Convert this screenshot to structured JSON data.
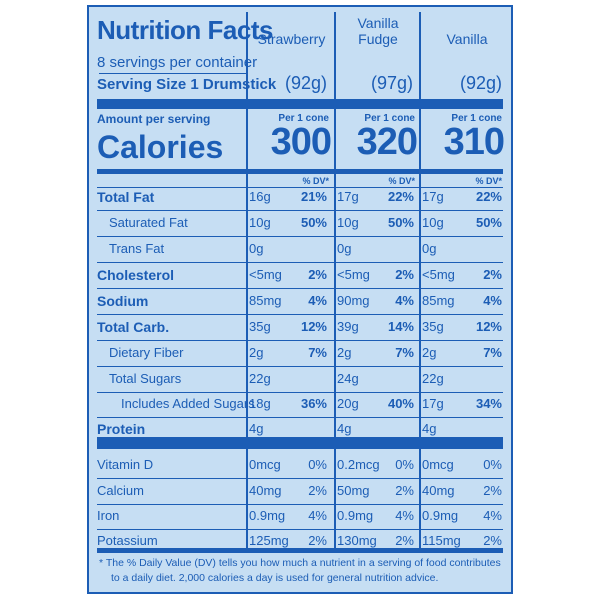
{
  "header": {
    "title": "Nutrition Facts",
    "servings": "8 servings per container",
    "serving_size_label": "Serving Size 1 Drumstick",
    "amount_per_serving": "Amount per serving",
    "calories_label": "Calories"
  },
  "columns": [
    {
      "name": "Strawberry",
      "serving": "(92g)",
      "per_cone": "Per 1 cone",
      "calories": "300",
      "dv_label": "% DV*"
    },
    {
      "name": "Vanilla Fudge",
      "serving": "(97g)",
      "per_cone": "Per 1 cone",
      "calories": "320",
      "dv_label": "% DV*"
    },
    {
      "name": "Vanilla",
      "serving": "(92g)",
      "per_cone": "Per 1 cone",
      "calories": "310",
      "dv_label": "% DV*"
    }
  ],
  "rows": [
    {
      "label": "Total Fat",
      "vals": [
        [
          "16g",
          "21%"
        ],
        [
          "17g",
          "22%"
        ],
        [
          "17g",
          "22%"
        ]
      ]
    },
    {
      "label": "Saturated Fat",
      "vals": [
        [
          "10g",
          "50%"
        ],
        [
          "10g",
          "50%"
        ],
        [
          "10g",
          "50%"
        ]
      ]
    },
    {
      "label": "Trans Fat",
      "vals": [
        [
          "0g",
          ""
        ],
        [
          "0g",
          ""
        ],
        [
          "0g",
          ""
        ]
      ]
    },
    {
      "label": "Cholesterol",
      "vals": [
        [
          "<5mg",
          "2%"
        ],
        [
          "<5mg",
          "2%"
        ],
        [
          "<5mg",
          "2%"
        ]
      ]
    },
    {
      "label": "Sodium",
      "vals": [
        [
          "85mg",
          "4%"
        ],
        [
          "90mg",
          "4%"
        ],
        [
          "85mg",
          "4%"
        ]
      ]
    },
    {
      "label": "Total Carb.",
      "vals": [
        [
          "35g",
          "12%"
        ],
        [
          "39g",
          "14%"
        ],
        [
          "35g",
          "12%"
        ]
      ]
    },
    {
      "label": "Dietary Fiber",
      "vals": [
        [
          "2g",
          "7%"
        ],
        [
          "2g",
          "7%"
        ],
        [
          "2g",
          "7%"
        ]
      ]
    },
    {
      "label": "Total Sugars",
      "vals": [
        [
          "22g",
          ""
        ],
        [
          "24g",
          ""
        ],
        [
          "22g",
          ""
        ]
      ]
    },
    {
      "label": "Includes Added Sugars",
      "vals": [
        [
          "18g",
          "36%"
        ],
        [
          "20g",
          "40%"
        ],
        [
          "17g",
          "34%"
        ]
      ]
    },
    {
      "label": "Protein",
      "vals": [
        [
          "4g",
          ""
        ],
        [
          "4g",
          ""
        ],
        [
          "4g",
          ""
        ]
      ]
    },
    {
      "label": "Vitamin D",
      "vals": [
        [
          "0mcg",
          "0%"
        ],
        [
          "0.2mcg",
          "0%"
        ],
        [
          "0mcg",
          "0%"
        ]
      ]
    },
    {
      "label": "Calcium",
      "vals": [
        [
          "40mg",
          "2%"
        ],
        [
          "50mg",
          "2%"
        ],
        [
          "40mg",
          "2%"
        ]
      ]
    },
    {
      "label": "Iron",
      "vals": [
        [
          "0.9mg",
          "4%"
        ],
        [
          "0.9mg",
          "4%"
        ],
        [
          "0.9mg",
          "4%"
        ]
      ]
    },
    {
      "label": "Potassium",
      "vals": [
        [
          "125mg",
          "2%"
        ],
        [
          "130mg",
          "2%"
        ],
        [
          "115mg",
          "2%"
        ]
      ]
    }
  ],
  "footnote": {
    "line1": "* The % Daily Value (DV) tells you how much a nutrient in a serving of food contributes",
    "line2": "to a daily diet. 2,000 calories a day is used for general nutrition advice."
  },
  "colors": {
    "background": "#c6def3",
    "ink": "#1c5db5",
    "page": "#ffffff"
  }
}
